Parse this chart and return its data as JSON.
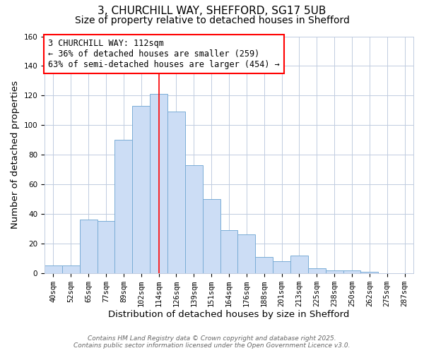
{
  "title": "3, CHURCHILL WAY, SHEFFORD, SG17 5UB",
  "subtitle": "Size of property relative to detached houses in Shefford",
  "xlabel": "Distribution of detached houses by size in Shefford",
  "ylabel": "Number of detached properties",
  "bar_labels": [
    "40sqm",
    "52sqm",
    "65sqm",
    "77sqm",
    "89sqm",
    "102sqm",
    "114sqm",
    "126sqm",
    "139sqm",
    "151sqm",
    "164sqm",
    "176sqm",
    "188sqm",
    "201sqm",
    "213sqm",
    "225sqm",
    "238sqm",
    "250sqm",
    "262sqm",
    "275sqm",
    "287sqm"
  ],
  "bar_values": [
    5,
    5,
    36,
    35,
    90,
    113,
    121,
    109,
    73,
    50,
    29,
    26,
    11,
    8,
    12,
    3,
    2,
    2,
    1,
    0,
    0
  ],
  "bar_color": "#ccddf5",
  "bar_edge_color": "#7aadd6",
  "reference_line_x_label": "114sqm",
  "reference_line_color": "red",
  "annotation_text": "3 CHURCHILL WAY: 112sqm\n← 36% of detached houses are smaller (259)\n63% of semi-detached houses are larger (454) →",
  "annotation_box_edge_color": "red",
  "ylim": [
    0,
    160
  ],
  "yticks": [
    0,
    20,
    40,
    60,
    80,
    100,
    120,
    140,
    160
  ],
  "footer_line1": "Contains HM Land Registry data © Crown copyright and database right 2025.",
  "footer_line2": "Contains public sector information licensed under the Open Government Licence v3.0.",
  "bg_color": "#ffffff",
  "grid_color": "#c0cce0",
  "title_fontsize": 11,
  "subtitle_fontsize": 10,
  "axis_label_fontsize": 9.5,
  "tick_fontsize": 7.5,
  "annotation_fontsize": 8.5,
  "footer_fontsize": 6.5
}
